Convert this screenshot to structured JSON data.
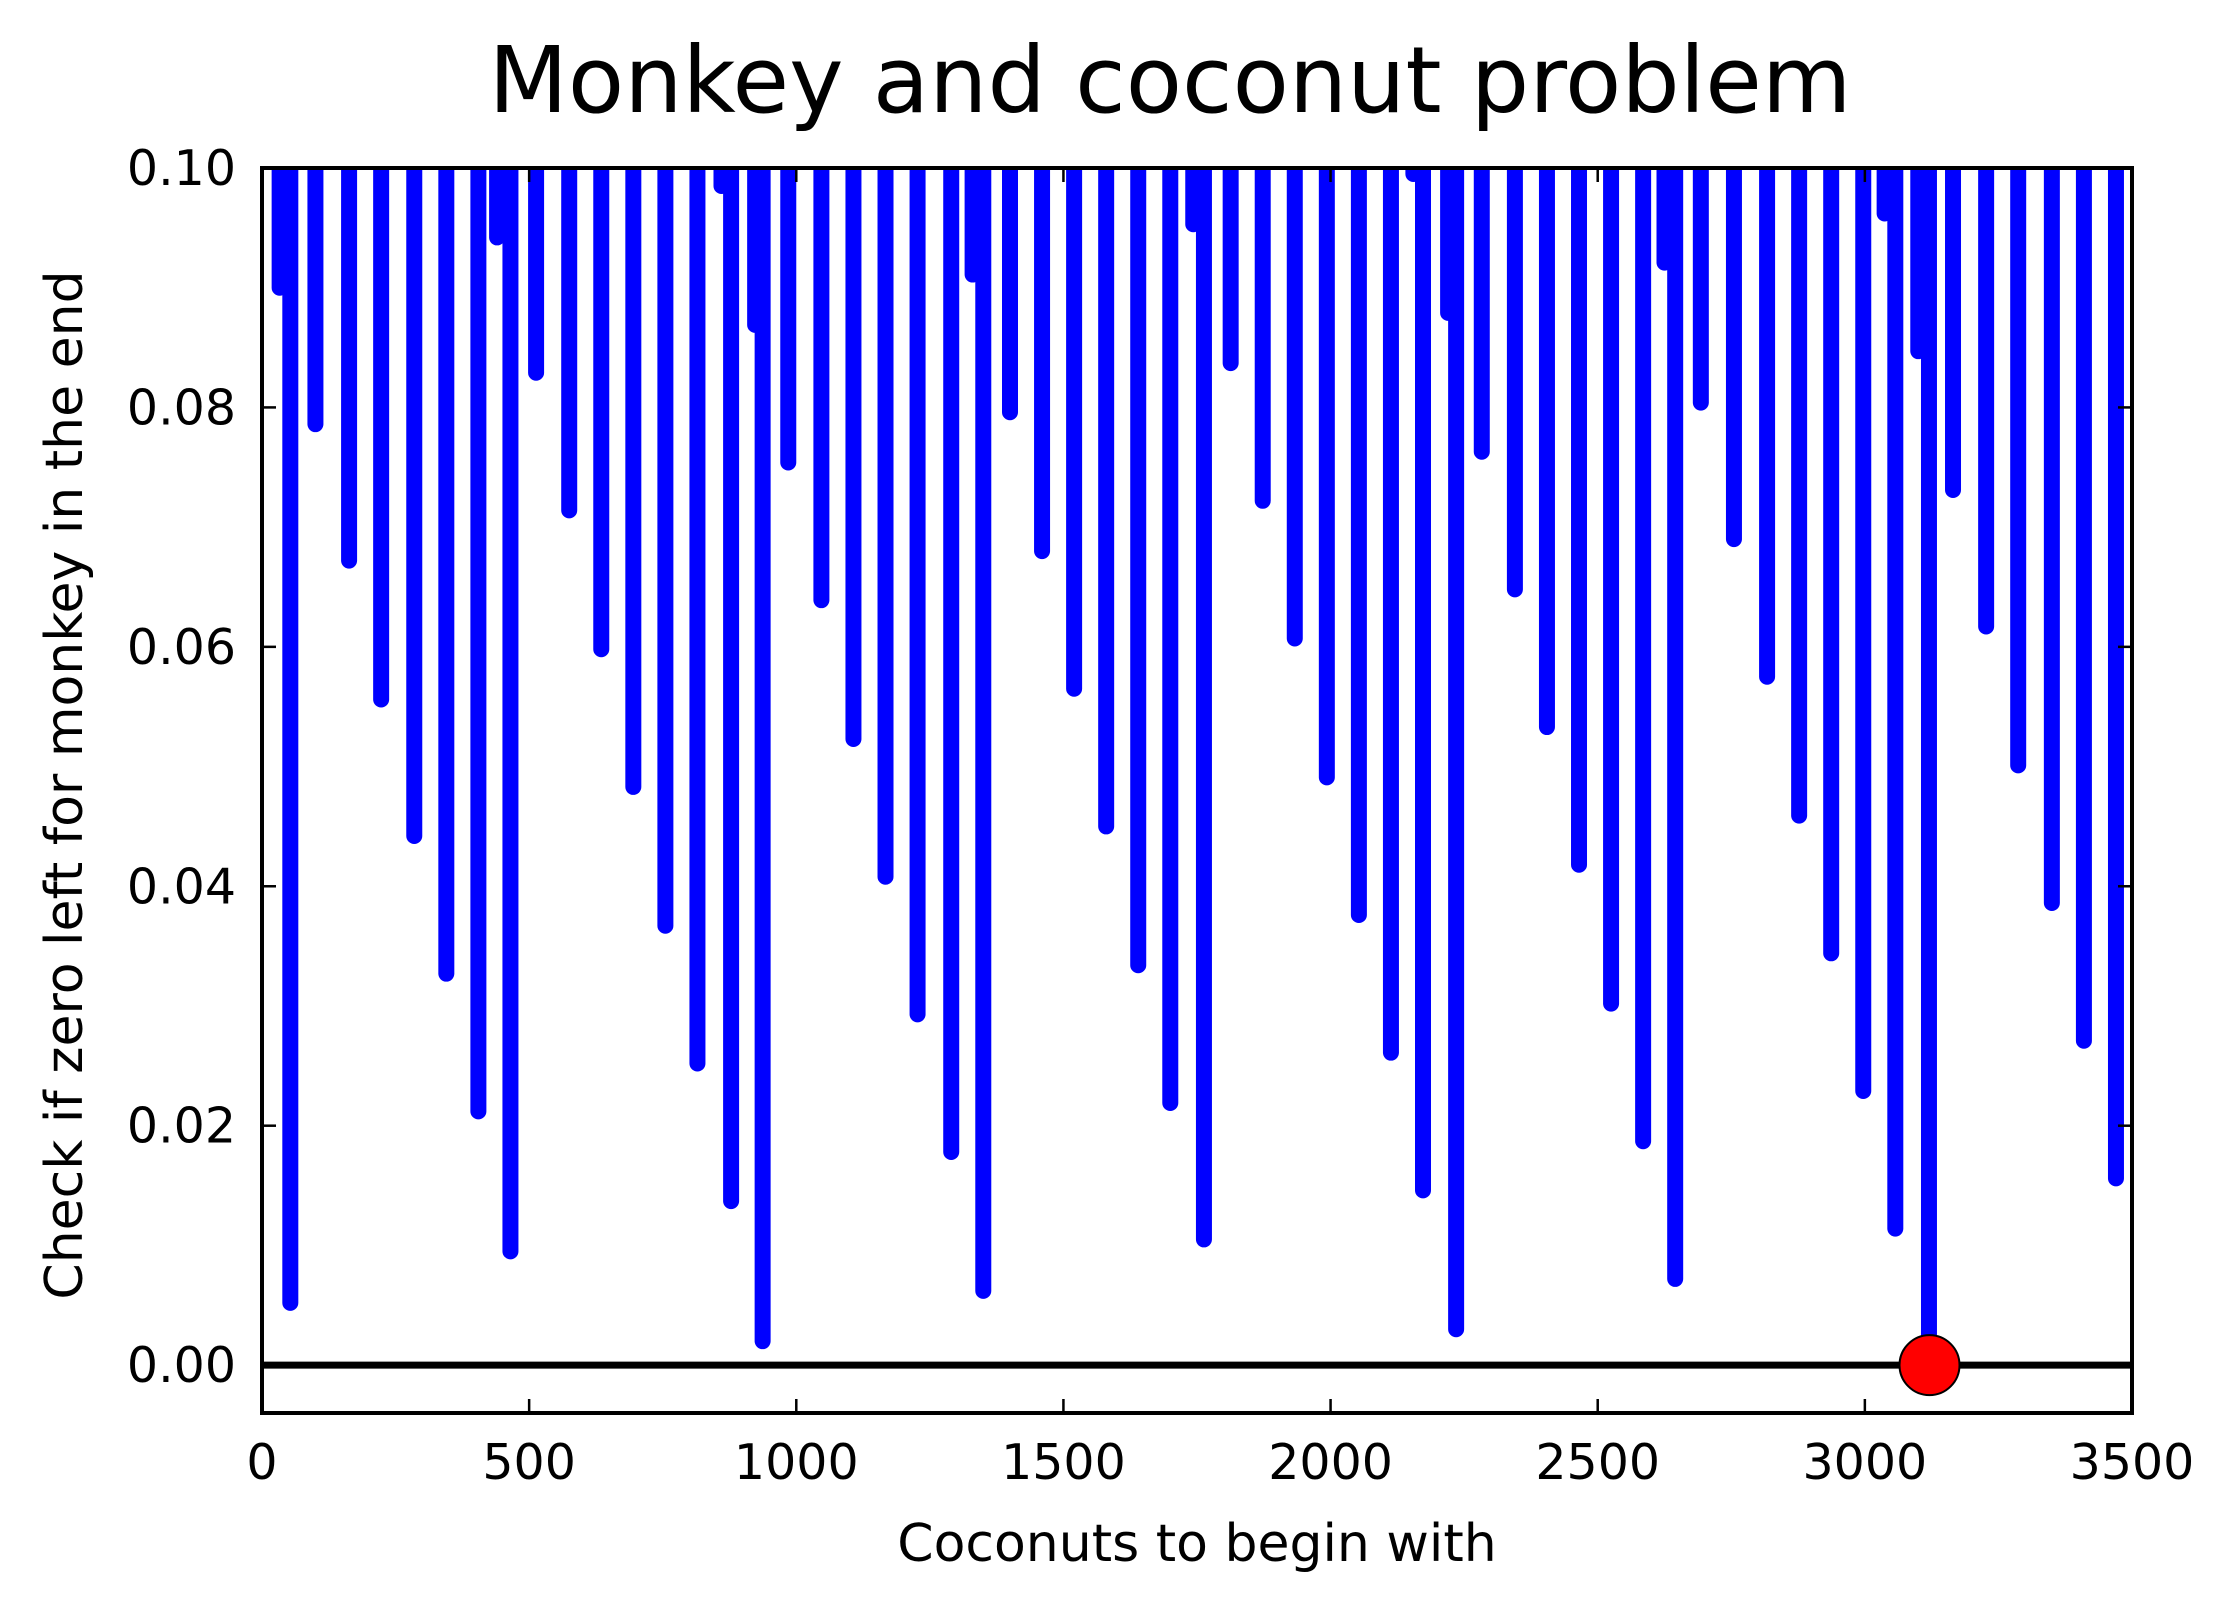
{
  "chart_data": {
    "type": "line",
    "title": "Monkey and coconut problem",
    "xlabel": "Coconuts to begin with",
    "ylabel": "Check if zero left for monkey in the end",
    "xlim": [
      0,
      3500
    ],
    "ylim": [
      -0.004,
      0.1
    ],
    "xticks": [
      0,
      500,
      1000,
      1500,
      2000,
      2500,
      3000,
      3500
    ],
    "xtick_labels": [
      "0",
      "500",
      "1000",
      "1500",
      "2000",
      "2500",
      "3000",
      "3500"
    ],
    "yticks": [
      0.0,
      0.02,
      0.04,
      0.06,
      0.08,
      0.1
    ],
    "ytick_labels": [
      "0.00",
      "0.02",
      "0.04",
      "0.06",
      "0.08",
      "0.10"
    ],
    "grid": false,
    "colors": {
      "series": "#0000ff",
      "zero_line": "#000000",
      "marker": "#ff0000"
    },
    "series": [
      {
        "x": [
          33,
          53,
          100,
          163,
          223,
          285,
          345,
          405,
          440,
          465,
          513,
          575,
          635,
          695,
          755,
          815,
          860,
          878,
          923,
          937,
          985,
          1047,
          1107,
          1167,
          1227,
          1290,
          1330,
          1350,
          1400,
          1460,
          1520,
          1580,
          1640,
          1700,
          1743,
          1763,
          1813,
          1873,
          1933,
          1993,
          2053,
          2113,
          2155,
          2173,
          2220,
          2235,
          2283,
          2345,
          2405,
          2465,
          2525,
          2585,
          2625,
          2645,
          2693,
          2755,
          2817,
          2877,
          2937,
          2997,
          3037,
          3057,
          3100,
          3120,
          3165,
          3227,
          3287,
          3350,
          3410,
          3470
        ],
        "y": [
          0.09,
          0.0052,
          0.0786,
          0.0672,
          0.0556,
          0.0442,
          0.0327,
          0.0212,
          0.0942,
          0.0095,
          0.0829,
          0.0714,
          0.0598,
          0.0483,
          0.0367,
          0.0252,
          0.0985,
          0.0137,
          0.0869,
          0.002,
          0.0754,
          0.0639,
          0.0523,
          0.0408,
          0.0293,
          0.0178,
          0.0911,
          0.0062,
          0.0796,
          0.068,
          0.0565,
          0.045,
          0.0334,
          0.0219,
          0.0953,
          0.0105,
          0.0837,
          0.0722,
          0.0607,
          0.0491,
          0.0376,
          0.0261,
          0.0995,
          0.0146,
          0.0879,
          0.003,
          0.0763,
          0.0648,
          0.0533,
          0.0418,
          0.0302,
          0.0187,
          0.0921,
          0.0072,
          0.0804,
          0.069,
          0.0575,
          0.0459,
          0.0344,
          0.0229,
          0.0962,
          0.0114,
          0.0847,
          0.0,
          0.0731,
          0.0617,
          0.0501,
          0.0386,
          0.0271,
          0.0156
        ]
      }
    ],
    "zero_line": {
      "y": 0.0
    },
    "highlight_point": {
      "x": 3121,
      "y": 0.0
    }
  }
}
